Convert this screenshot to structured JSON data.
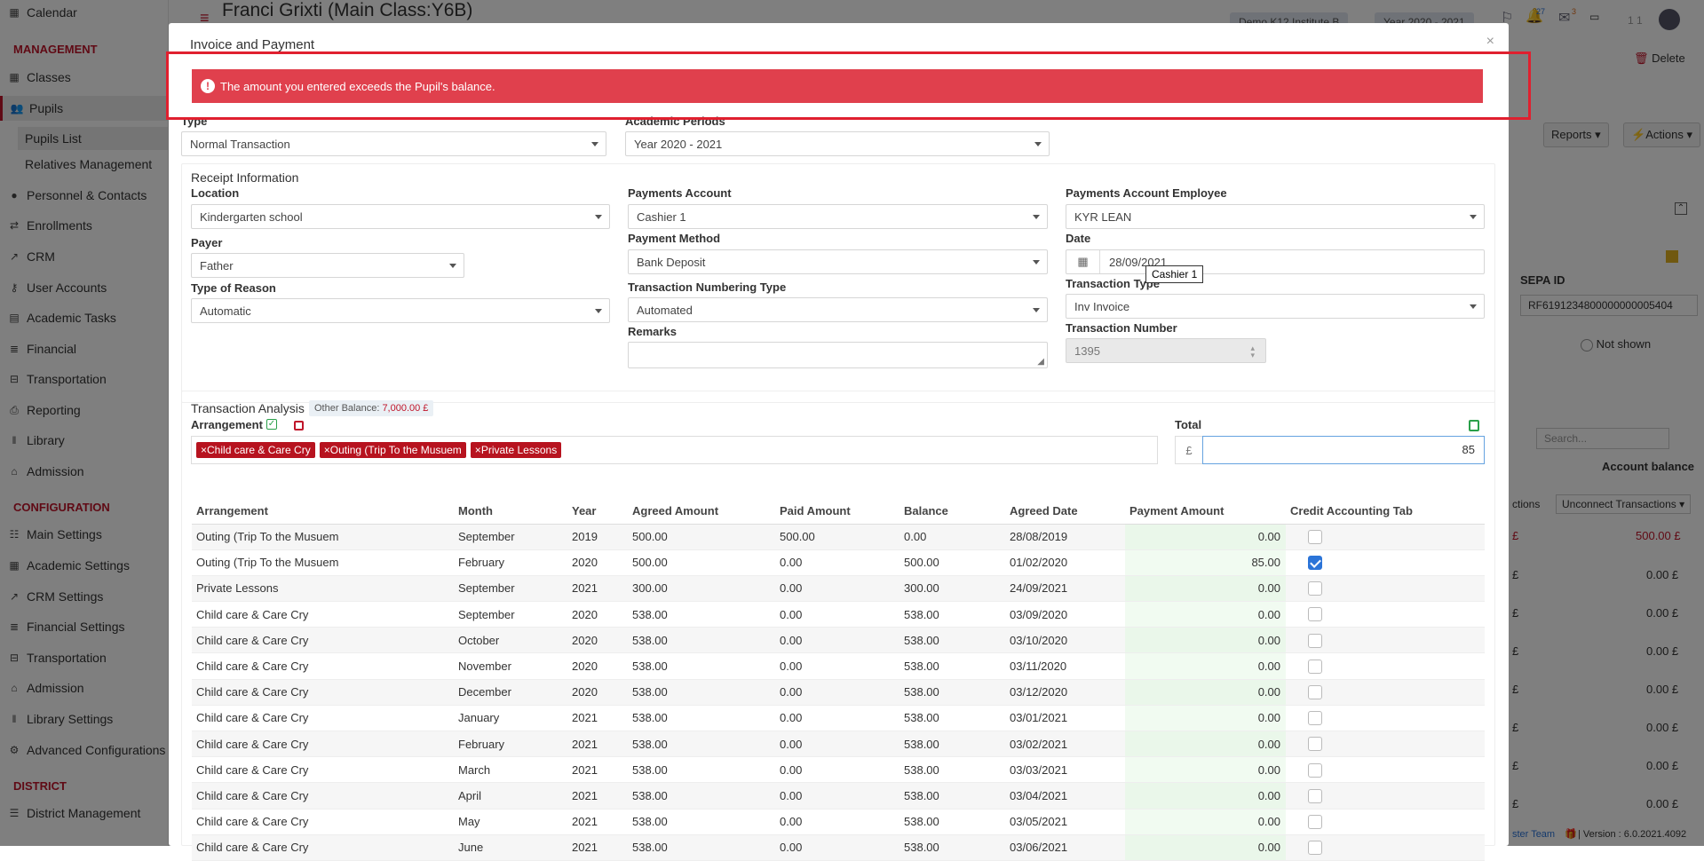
{
  "sidebar": {
    "calendar": "Calendar",
    "management_header": "MANAGEMENT",
    "classes": "Classes",
    "pupils": "Pupils",
    "pupils_list": "Pupils List",
    "relatives_management": "Relatives Management",
    "personnel_contacts": "Personnel & Contacts",
    "enrollments": "Enrollments",
    "crm": "CRM",
    "user_accounts": "User Accounts",
    "academic_tasks": "Academic Tasks",
    "financial": "Financial",
    "transportation": "Transportation",
    "reporting": "Reporting",
    "library": "Library",
    "admission": "Admission",
    "configuration_header": "CONFIGURATION",
    "main_settings": "Main Settings",
    "academic_settings": "Academic Settings",
    "crm_settings": "CRM Settings",
    "financial_settings": "Financial Settings",
    "transportation2": "Transportation",
    "admission2": "Admission",
    "library_settings": "Library Settings",
    "advanced_configurations": "Advanced Configurations",
    "district_header": "DISTRICT",
    "district_management": "District Management"
  },
  "background": {
    "page_title": "Franci Grixti (Main Class:Y6B)",
    "institute_chip": "Demo K12 Institute B",
    "year_chip": "Year 2020 - 2021",
    "notif_count_1": "27",
    "notif_count_2": "3",
    "user_short": "1 1",
    "delete_label": "Delete",
    "reports_label": "Reports",
    "actions_label": "Actions",
    "sepa_label": "SEPA ID",
    "sepa_value": "RF6191234800000000005404",
    "not_shown": "Not shown",
    "search_placeholder": "Search...",
    "account_balance": "Account balance",
    "unconnect_label": "Unconnect Transactions",
    "actions_short": "ctions",
    "balance_1": "500.00 £",
    "balance_zero": "0.00 £",
    "pound": "£",
    "footer_text": "ster Team",
    "version": "| Version : 6.0.2021.4092"
  },
  "modal": {
    "title": "Invoice and Payment",
    "close": "×",
    "alert_text": "The amount you entered exceeds the Pupil's balance.",
    "type_label": "Type",
    "type_value": "Normal Transaction",
    "academic_periods_label": "Academic Periods",
    "academic_periods_value": "Year 2020 - 2021",
    "receipt_info_title": "Receipt Information",
    "location_label": "Location",
    "location_value": "Kindergarten school",
    "payer_label": "Payer",
    "payer_value": "Father",
    "type_of_reason_label": "Type of Reason",
    "type_of_reason_value": "Automatic",
    "payments_account_label": "Payments Account",
    "payments_account_value": "Cashier 1",
    "payment_method_label": "Payment Method",
    "payment_method_value": "Bank Deposit",
    "tooltip_text": "Cashier 1",
    "transaction_numbering_label": "Transaction Numbering Type",
    "transaction_numbering_value": "Automated",
    "remarks_label": "Remarks",
    "pa_employee_label": "Payments Account Employee",
    "pa_employee_value": "KYR LEAN",
    "date_label": "Date",
    "date_value": "28/09/2021",
    "transaction_type_label": "Transaction Type",
    "transaction_type_value": "Inv Invoice",
    "transaction_number_label": "Transaction Number",
    "transaction_number_value": "1395",
    "analysis_title": "Transaction Analysis",
    "other_balance_label": "Other Balance:",
    "other_balance_value": "7,000.00 £",
    "arrangement_label": "Arrangement",
    "tags": [
      "Child care & Care Cry",
      "Outing (Trip To the Musuem",
      "Private Lessons"
    ],
    "total_label": "Total",
    "currency": "£",
    "total_value": "85"
  },
  "table": {
    "headers": [
      "Arrangement",
      "Month",
      "Year",
      "Agreed Amount",
      "Paid Amount",
      "Balance",
      "Agreed Date",
      "Payment Amount",
      "Credit Accounting Tab"
    ],
    "rows": [
      {
        "arrangement": "Outing (Trip To the Musuem",
        "month": "September",
        "year": "2019",
        "agreed": "500.00",
        "paid": "500.00",
        "balance": "0.00",
        "date": "28/08/2019",
        "payment": "0.00",
        "credit": false
      },
      {
        "arrangement": "Outing (Trip To the Musuem",
        "month": "February",
        "year": "2020",
        "agreed": "500.00",
        "paid": "0.00",
        "balance": "500.00",
        "date": "01/02/2020",
        "payment": "85.00",
        "credit": true
      },
      {
        "arrangement": "Private Lessons",
        "month": "September",
        "year": "2021",
        "agreed": "300.00",
        "paid": "0.00",
        "balance": "300.00",
        "date": "24/09/2021",
        "payment": "0.00",
        "credit": false
      },
      {
        "arrangement": "Child care & Care Cry",
        "month": "September",
        "year": "2020",
        "agreed": "538.00",
        "paid": "0.00",
        "balance": "538.00",
        "date": "03/09/2020",
        "payment": "0.00",
        "credit": false
      },
      {
        "arrangement": "Child care & Care Cry",
        "month": "October",
        "year": "2020",
        "agreed": "538.00",
        "paid": "0.00",
        "balance": "538.00",
        "date": "03/10/2020",
        "payment": "0.00",
        "credit": false
      },
      {
        "arrangement": "Child care & Care Cry",
        "month": "November",
        "year": "2020",
        "agreed": "538.00",
        "paid": "0.00",
        "balance": "538.00",
        "date": "03/11/2020",
        "payment": "0.00",
        "credit": false
      },
      {
        "arrangement": "Child care & Care Cry",
        "month": "December",
        "year": "2020",
        "agreed": "538.00",
        "paid": "0.00",
        "balance": "538.00",
        "date": "03/12/2020",
        "payment": "0.00",
        "credit": false
      },
      {
        "arrangement": "Child care & Care Cry",
        "month": "January",
        "year": "2021",
        "agreed": "538.00",
        "paid": "0.00",
        "balance": "538.00",
        "date": "03/01/2021",
        "payment": "0.00",
        "credit": false
      },
      {
        "arrangement": "Child care & Care Cry",
        "month": "February",
        "year": "2021",
        "agreed": "538.00",
        "paid": "0.00",
        "balance": "538.00",
        "date": "03/02/2021",
        "payment": "0.00",
        "credit": false
      },
      {
        "arrangement": "Child care & Care Cry",
        "month": "March",
        "year": "2021",
        "agreed": "538.00",
        "paid": "0.00",
        "balance": "538.00",
        "date": "03/03/2021",
        "payment": "0.00",
        "credit": false
      },
      {
        "arrangement": "Child care & Care Cry",
        "month": "April",
        "year": "2021",
        "agreed": "538.00",
        "paid": "0.00",
        "balance": "538.00",
        "date": "03/04/2021",
        "payment": "0.00",
        "credit": false
      },
      {
        "arrangement": "Child care & Care Cry",
        "month": "May",
        "year": "2021",
        "agreed": "538.00",
        "paid": "0.00",
        "balance": "538.00",
        "date": "03/05/2021",
        "payment": "0.00",
        "credit": false
      },
      {
        "arrangement": "Child care & Care Cry",
        "month": "June",
        "year": "2021",
        "agreed": "538.00",
        "paid": "0.00",
        "balance": "538.00",
        "date": "03/06/2021",
        "payment": "0.00",
        "credit": false
      }
    ]
  },
  "colors": {
    "brand_red": "#c0152a",
    "alert_red": "#e0404d",
    "checkbox_blue": "#2b74d8",
    "accent_green": "#2aa04a"
  }
}
